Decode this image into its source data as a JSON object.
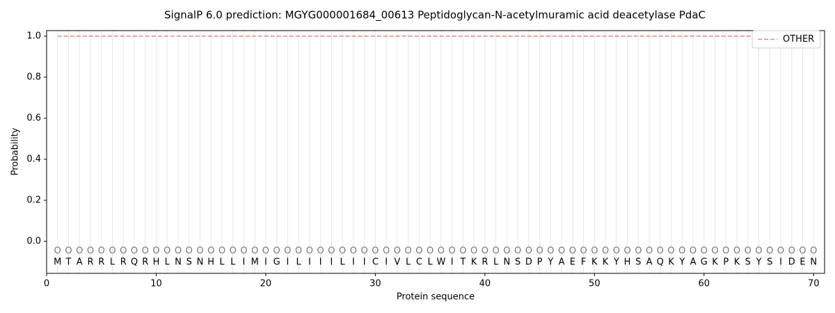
{
  "chart_data": {
    "type": "line",
    "title": "SignalP 6.0 prediction: MGYG000001684_00613 Peptidoglycan-N-acetylmuramic acid deacetylase PdaC",
    "xlabel": "Protein sequence",
    "ylabel": "Probability",
    "x": [
      1,
      2,
      3,
      4,
      5,
      6,
      7,
      8,
      9,
      10,
      11,
      12,
      13,
      14,
      15,
      16,
      17,
      18,
      19,
      20,
      21,
      22,
      23,
      24,
      25,
      26,
      27,
      28,
      29,
      30,
      31,
      32,
      33,
      34,
      35,
      36,
      37,
      38,
      39,
      40,
      41,
      42,
      43,
      44,
      45,
      46,
      47,
      48,
      49,
      50,
      51,
      52,
      53,
      54,
      55,
      56,
      57,
      58,
      59,
      60,
      61,
      62,
      63,
      64,
      65,
      66,
      67,
      68,
      69,
      70
    ],
    "residues": [
      "M",
      "T",
      "A",
      "R",
      "R",
      "L",
      "R",
      "Q",
      "R",
      "H",
      "L",
      "N",
      "S",
      "N",
      "H",
      "L",
      "L",
      "I",
      "M",
      "I",
      "G",
      "I",
      "L",
      "I",
      "I",
      "I",
      "L",
      "I",
      "I",
      "C",
      "I",
      "V",
      "L",
      "C",
      "L",
      "W",
      "I",
      "T",
      "K",
      "R",
      "L",
      "N",
      "S",
      "D",
      "P",
      "Y",
      "A",
      "E",
      "F",
      "K",
      "K",
      "Y",
      "H",
      "S",
      "A",
      "Q",
      "K",
      "Y",
      "A",
      "G",
      "K",
      "P",
      "K",
      "S",
      "Y",
      "S",
      "I",
      "D",
      "E",
      "N"
    ],
    "region_labels": [
      "O",
      "O",
      "O",
      "O",
      "O",
      "O",
      "O",
      "O",
      "O",
      "O",
      "O",
      "O",
      "O",
      "O",
      "O",
      "O",
      "O",
      "O",
      "O",
      "O",
      "O",
      "O",
      "O",
      "O",
      "O",
      "O",
      "O",
      "O",
      "O",
      "O",
      "O",
      "O",
      "O",
      "O",
      "O",
      "O",
      "O",
      "O",
      "O",
      "O",
      "O",
      "O",
      "O",
      "O",
      "O",
      "O",
      "O",
      "O",
      "O",
      "O",
      "O",
      "O",
      "O",
      "O",
      "O",
      "O",
      "O",
      "O",
      "O",
      "O",
      "O",
      "O",
      "O",
      "O",
      "O",
      "O",
      "O",
      "O",
      "O",
      "O"
    ],
    "series": [
      {
        "name": "OTHER",
        "color": "#f08080",
        "values": [
          1,
          1,
          1,
          1,
          1,
          1,
          1,
          1,
          1,
          1,
          1,
          1,
          1,
          1,
          1,
          1,
          1,
          1,
          1,
          1,
          1,
          1,
          1,
          1,
          1,
          1,
          1,
          1,
          1,
          1,
          1,
          1,
          1,
          1,
          1,
          1,
          1,
          1,
          1,
          1,
          1,
          1,
          1,
          1,
          1,
          1,
          1,
          1,
          1,
          1,
          1,
          1,
          1,
          1,
          1,
          1,
          1,
          1,
          1,
          1,
          1,
          1,
          1,
          1,
          1,
          1,
          1,
          1,
          1,
          1
        ]
      }
    ],
    "xlim": [
      0,
      71
    ],
    "ylim": [
      -0.156,
      1.027
    ],
    "xticks": [
      0,
      10,
      20,
      30,
      40,
      50,
      60,
      70
    ],
    "yticks": [
      {
        "value": 0,
        "label": "0.0"
      },
      {
        "value": 0.2,
        "label": "0.2"
      },
      {
        "value": 0.4,
        "label": "0.4"
      },
      {
        "value": 0.6,
        "label": "0.6"
      },
      {
        "value": 0.8,
        "label": "0.8"
      },
      {
        "value": 1,
        "label": "1.0"
      }
    ],
    "legend": "upper right"
  }
}
